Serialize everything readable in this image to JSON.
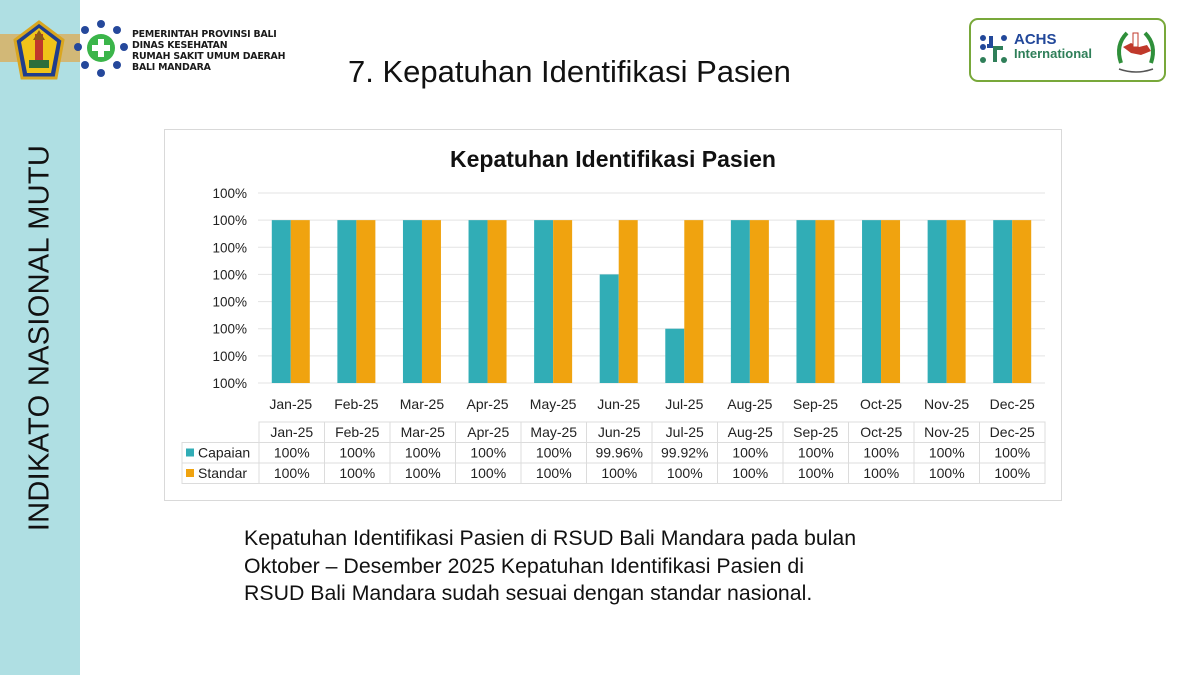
{
  "sidebar": {
    "label": "INDIKATO NASIONAL MUTU"
  },
  "header": {
    "org_lines": [
      "PEMERINTAH PROVINSI BALI",
      "DINAS KESEHATAN",
      "RUMAH SAKIT UMUM DAERAH",
      "BALI MANDARA"
    ],
    "title": "7. Kepatuhan Identifikasi Pasien",
    "accreditation": {
      "line1": "ACHS",
      "line2": "International"
    }
  },
  "colors": {
    "capaian": "#31adb6",
    "standar": "#f0a30f",
    "sidebar": "#afdfe3",
    "grid": "#e3e3e3"
  },
  "chart_data": {
    "type": "bar",
    "title": "Kepatuhan Identifikasi Pasien",
    "xlabel": "",
    "ylabel": "",
    "ylim": [
      99.88,
      100.02
    ],
    "ytick_step": 0.02,
    "ytick_labels": [
      "100%",
      "100%",
      "100%",
      "100%",
      "100%",
      "100%",
      "100%",
      "100%"
    ],
    "grid": true,
    "legend": "data-table",
    "categories": [
      "Jan-25",
      "Feb-25",
      "Mar-25",
      "Apr-25",
      "May-25",
      "Jun-25",
      "Jul-25",
      "Aug-25",
      "Sep-25",
      "Oct-25",
      "Nov-25",
      "Dec-25"
    ],
    "series": [
      {
        "name": "Capaian",
        "values": [
          100,
          100,
          100,
          100,
          100,
          99.96,
          99.92,
          100,
          100,
          100,
          100,
          100
        ],
        "labels": [
          "100%",
          "100%",
          "100%",
          "100%",
          "100%",
          "99.96%",
          "99.92%",
          "100%",
          "100%",
          "100%",
          "100%",
          "100%"
        ]
      },
      {
        "name": "Standar",
        "values": [
          100,
          100,
          100,
          100,
          100,
          100,
          100,
          100,
          100,
          100,
          100,
          100
        ],
        "labels": [
          "100%",
          "100%",
          "100%",
          "100%",
          "100%",
          "100%",
          "100%",
          "100%",
          "100%",
          "100%",
          "100%",
          "100%"
        ]
      }
    ]
  },
  "description": {
    "lines": [
      "Kepatuhan Identifikasi Pasien di RSUD Bali Mandara pada bulan",
      "Oktober – Desember 2025 Kepatuhan Identifikasi Pasien di",
      "RSUD Bali Mandara sudah sesuai dengan standar nasional."
    ]
  }
}
